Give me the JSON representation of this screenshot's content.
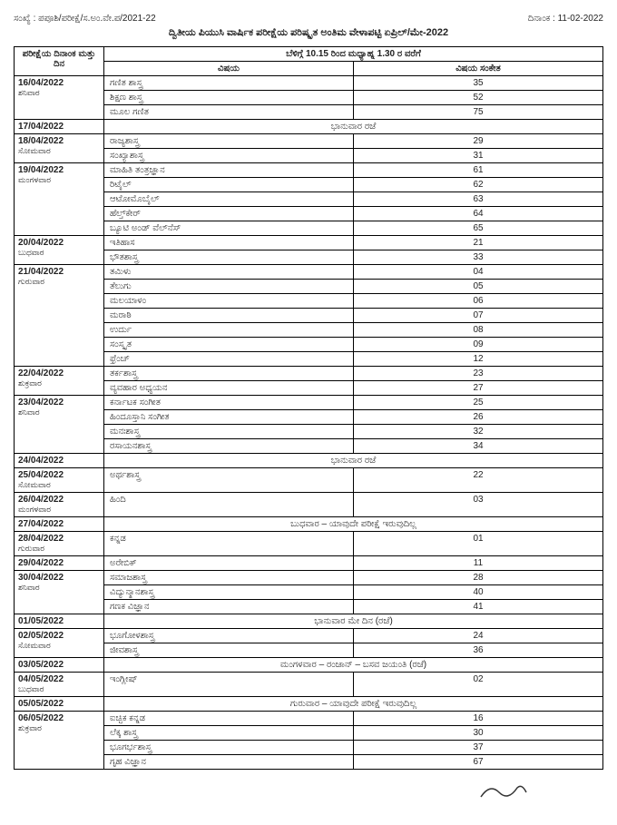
{
  "header": {
    "left": "ಸಂಖ್ಯೆ : ಪಪೂಶಿ/ಪರೀಕ್ಷೆ/ಸ.ಅಂ.ವೇ.ಪ/2021-22",
    "right": "ದಿನಾಂಕ : 11-02-2022",
    "title": "ದ್ವಿತೀಯ ಪಿಯುಸಿ ವಾರ್ಷಿಕ ಪರೀಕ್ಷೆಯ ಪರಿಷ್ಕೃತ ಅಂತಿಮ ವೇಳಾಪಟ್ಟಿ ಏಪ್ರಿಲ್/ಮೇ-2022"
  },
  "table": {
    "col1_header": "ಪರೀಕ್ಷೆಯ ದಿನಾಂಕ ಮತ್ತು ದಿನ",
    "time_header": "ಬೆಳಿಗ್ಗೆ 10.15 ರಿಂದ ಮಧ್ಯಾಹ್ನ 1.30 ರ ವರೆಗೆ",
    "col2_header": "ವಿಷಯ",
    "col3_header": "ವಿಷಯ ಸಂಕೇತ"
  },
  "rows": [
    {
      "date": "16/04/2022",
      "day": "ಶನಿವಾರ",
      "items": [
        [
          "ಗಣಿತ ಶಾಸ್ತ್ರ",
          "35"
        ],
        [
          "ಶಿಕ್ಷಣ ಶಾಸ್ತ್ರ",
          "52"
        ],
        [
          "ಮೂಲ ಗಣಿತ",
          "75"
        ]
      ]
    },
    {
      "date": "17/04/2022",
      "note": "ಭಾನುವಾರ ರಜೆ"
    },
    {
      "date": "18/04/2022",
      "day": "ಸೋಮವಾರ",
      "items": [
        [
          "ರಾಜ್ಯಶಾಸ್ತ್ರ",
          "29"
        ],
        [
          "ಸಂಖ್ಯಾಶಾಸ್ತ್ರ",
          "31"
        ]
      ]
    },
    {
      "date": "19/04/2022",
      "day": "ಮಂಗಳವಾರ",
      "items": [
        [
          "ಮಾಹಿತಿ ತಂತ್ರಜ್ಞಾನ",
          "61"
        ],
        [
          "ರಿಟೈಲ್",
          "62"
        ],
        [
          "ಆಟೋಮೊಬೈಲ್",
          "63"
        ],
        [
          "ಹೆಲ್ತ್‌ಕೇರ್",
          "64"
        ],
        [
          "ಬ್ಯೂಟಿ ಅಂಡ್ ವೆಲ್‌ನೆಸ್",
          "65"
        ]
      ]
    },
    {
      "date": "20/04/2022",
      "day": "ಬುಧವಾರ",
      "items": [
        [
          "ಇತಿಹಾಸ",
          "21"
        ],
        [
          "ಭೌತಶಾಸ್ತ್ರ",
          "33"
        ]
      ]
    },
    {
      "date": "21/04/2022",
      "day": "ಗುರುವಾರ",
      "items": [
        [
          "ತಮಿಳು",
          "04"
        ],
        [
          "ತೆಲುಗು",
          "05"
        ],
        [
          "ಮಲಯಾಳಂ",
          "06"
        ],
        [
          "ಮರಾಠಿ",
          "07"
        ],
        [
          "ಉರ್ದು",
          "08"
        ],
        [
          "ಸಂಸ್ಕೃತ",
          "09"
        ],
        [
          "ಫ್ರೆಂಚ್",
          "12"
        ]
      ]
    },
    {
      "date": "22/04/2022",
      "day": "ಶುಕ್ರವಾರ",
      "items": [
        [
          "ತರ್ಕಶಾಸ್ತ್ರ",
          "23"
        ],
        [
          "ವ್ಯವಹಾರ ಅಧ್ಯಯನ",
          "27"
        ]
      ]
    },
    {
      "date": "23/04/2022",
      "day": "ಶನಿವಾರ",
      "items": [
        [
          "ಕರ್ನಾಟಕ ಸಂಗೀತ",
          "25"
        ],
        [
          "ಹಿಂದೂಸ್ತಾನಿ ಸಂಗೀತ",
          "26"
        ],
        [
          "ಮನಃಶಾಸ್ತ್ರ",
          "32"
        ],
        [
          "ರಸಾಯನಶಾಸ್ತ್ರ",
          "34"
        ]
      ]
    },
    {
      "date": "24/04/2022",
      "note": "ಭಾನುವಾರ ರಜೆ"
    },
    {
      "date": "25/04/2022",
      "day": "ಸೋಮವಾರ",
      "items": [
        [
          "ಅರ್ಥಶಾಸ್ತ್ರ",
          "22"
        ]
      ]
    },
    {
      "date": "26/04/2022",
      "day": "ಮಂಗಳವಾರ",
      "items": [
        [
          "ಹಿಂದಿ",
          "03"
        ]
      ]
    },
    {
      "date": "27/04/2022",
      "note": "ಬುಧವಾರ – ಯಾವುದೇ ಪರೀಕ್ಷೆ ಇರುವುದಿಲ್ಲ"
    },
    {
      "date": "28/04/2022",
      "day": "ಗುರುವಾರ",
      "items": [
        [
          "ಕನ್ನಡ",
          "01"
        ]
      ]
    },
    {
      "date": "29/04/2022",
      "items": [
        [
          "ಅರೇಬಿಕ್",
          "11"
        ]
      ]
    },
    {
      "date": "30/04/2022",
      "day": "ಶನಿವಾರ",
      "items": [
        [
          "ಸಮಾಜಶಾಸ್ತ್ರ",
          "28"
        ],
        [
          "ವಿದ್ಯುನ್ಮಾನಶಾಸ್ತ್ರ",
          "40"
        ],
        [
          "ಗಣಕ ವಿಜ್ಞಾನ",
          "41"
        ]
      ]
    },
    {
      "date": "01/05/2022",
      "note": "ಭಾನುವಾರ ಮೇ ದಿನ (ರಜೆ)"
    },
    {
      "date": "02/05/2022",
      "day": "ಸೋಮವಾರ",
      "items": [
        [
          "ಭೂಗೋಳಶಾಸ್ತ್ರ",
          "24"
        ],
        [
          "ಜೀವಶಾಸ್ತ್ರ",
          "36"
        ]
      ]
    },
    {
      "date": "03/05/2022",
      "note": "ಮಂಗಳವಾರ – ರಂಜಾನ್ – ಬಸವ ಜಯಂತಿ (ರಜೆ)"
    },
    {
      "date": "04/05/2022",
      "day": "ಬುಧವಾರ",
      "items": [
        [
          "ಇಂಗ್ಲೀಷ್",
          "02"
        ]
      ]
    },
    {
      "date": "05/05/2022",
      "note": "ಗುರುವಾರ – ಯಾವುದೇ ಪರೀಕ್ಷೆ ಇರುವುದಿಲ್ಲ"
    },
    {
      "date": "06/05/2022",
      "day": "ಶುಕ್ರವಾರ",
      "items": [
        [
          "ಐಚ್ಛಿಕ ಕನ್ನಡ",
          "16"
        ],
        [
          "ಲೆಕ್ಕ ಶಾಸ್ತ್ರ",
          "30"
        ],
        [
          "ಭೂಗರ್ಭಶಾಸ್ತ್ರ",
          "37"
        ],
        [
          "ಗೃಹ ವಿಜ್ಞಾನ",
          "67"
        ]
      ]
    }
  ]
}
